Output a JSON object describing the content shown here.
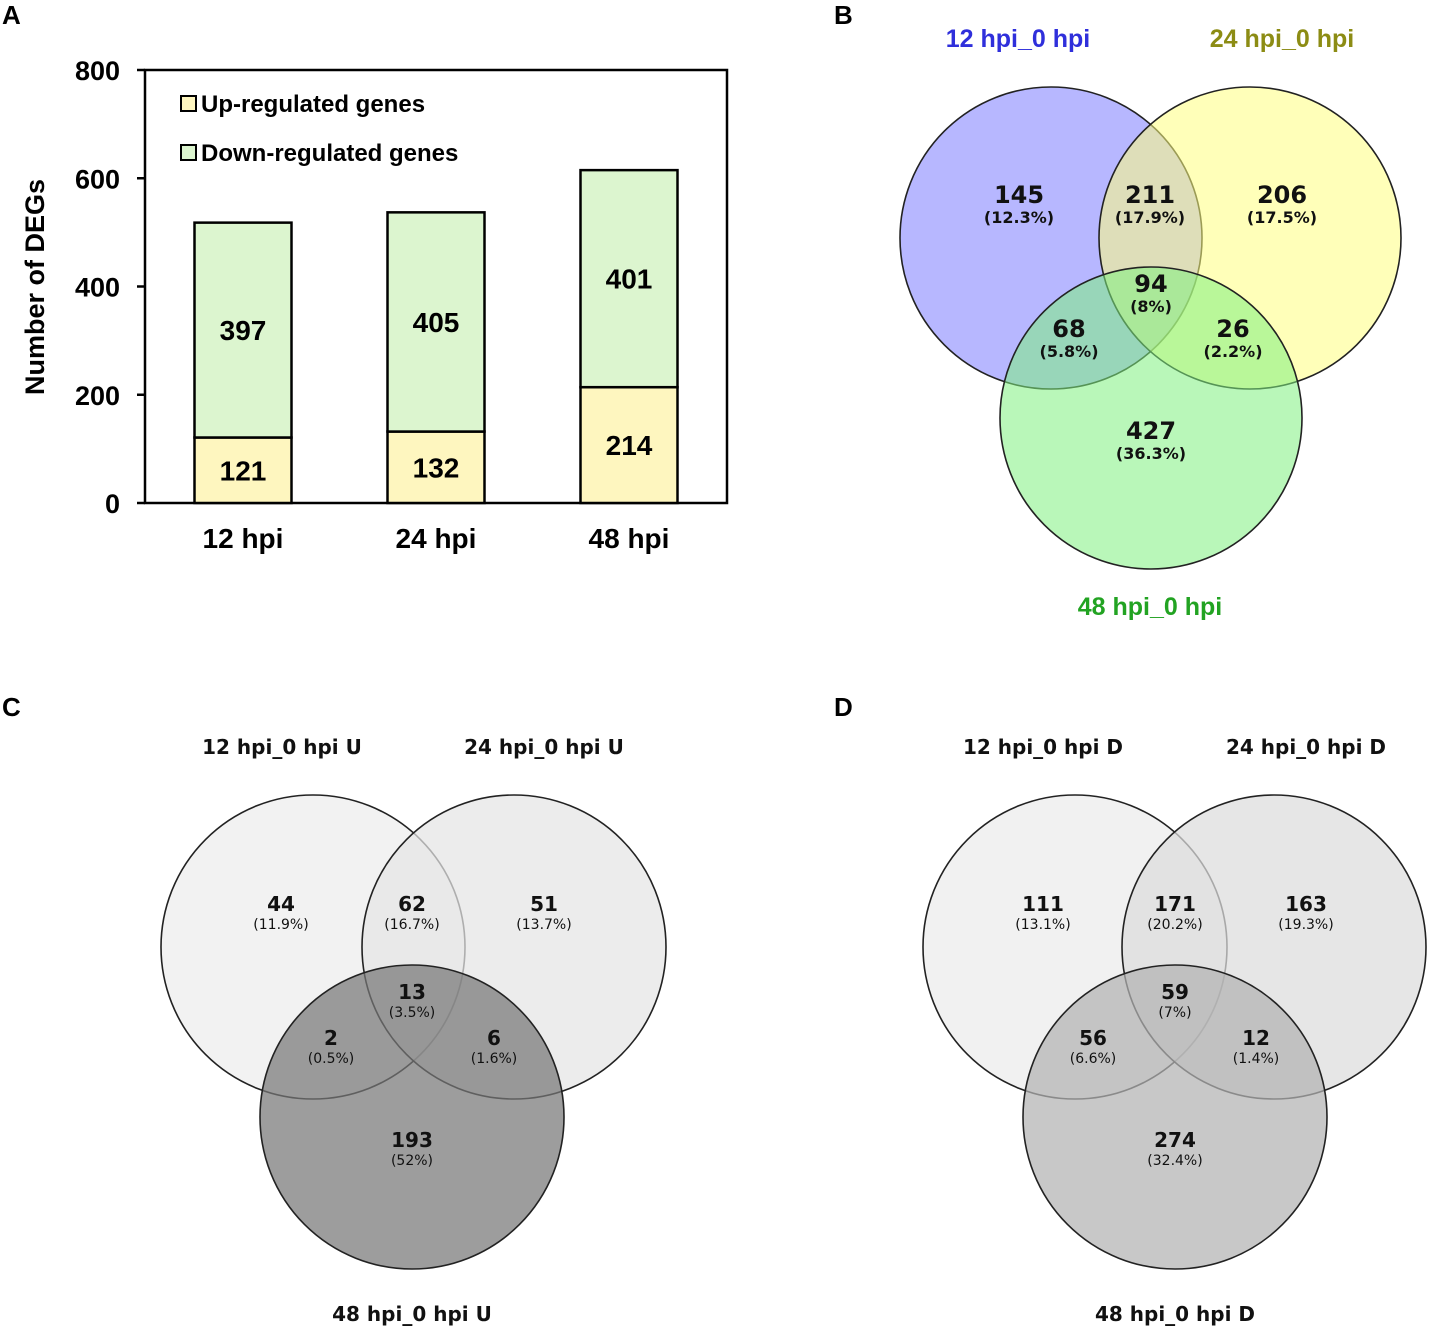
{
  "colors": {
    "up": "#fef6bf",
    "down": "#dcf5cf",
    "venn_b": [
      "#7b7cff",
      "#ffff7f",
      "#7ff07f"
    ],
    "venn_b_title": [
      "#2f2fdb",
      "#8c8c14",
      "#22a322"
    ],
    "venn_c": [
      "#ededed",
      "#e4e4e4",
      "#777777"
    ],
    "venn_d": [
      "#ececec",
      "#dcdcdc",
      "#b3b3b3"
    ]
  },
  "chart_data": [
    {
      "panel": "A",
      "type": "bar",
      "stacked": true,
      "categories": [
        "12 hpi",
        "24 hpi",
        "48 hpi"
      ],
      "series": [
        {
          "name": "Up-regulated genes",
          "values": [
            121,
            132,
            214
          ]
        },
        {
          "name": "Down-regulated genes",
          "values": [
            397,
            405,
            401
          ]
        }
      ],
      "ylabel": "Number of DEGs",
      "xlabel": "",
      "ylim": [
        0,
        800
      ],
      "yticks": [
        "0",
        "200",
        "400",
        "600",
        "800"
      ],
      "legend_position": "top-left"
    },
    {
      "panel": "B",
      "type": "venn",
      "sets": [
        "12 hpi_0 hpi",
        "24 hpi_0 hpi",
        "48 hpi_0 hpi"
      ],
      "regions": [
        {
          "key": "a",
          "count": "145",
          "pct": "(12.3%)"
        },
        {
          "key": "ab",
          "count": "211",
          "pct": "(17.9%)"
        },
        {
          "key": "b",
          "count": "206",
          "pct": "(17.5%)"
        },
        {
          "key": "abc",
          "count": "94",
          "pct": "(8%)"
        },
        {
          "key": "ac",
          "count": "68",
          "pct": "(5.8%)"
        },
        {
          "key": "bc",
          "count": "26",
          "pct": "(2.2%)"
        },
        {
          "key": "c",
          "count": "427",
          "pct": "(36.3%)"
        }
      ]
    },
    {
      "panel": "C",
      "type": "venn",
      "sets": [
        "12 hpi_0 hpi U",
        "24 hpi_0 hpi U",
        "48 hpi_0 hpi U"
      ],
      "regions": [
        {
          "key": "a",
          "count": "44",
          "pct": "(11.9%)"
        },
        {
          "key": "ab",
          "count": "62",
          "pct": "(16.7%)"
        },
        {
          "key": "b",
          "count": "51",
          "pct": "(13.7%)"
        },
        {
          "key": "abc",
          "count": "13",
          "pct": "(3.5%)"
        },
        {
          "key": "ac",
          "count": "2",
          "pct": "(0.5%)"
        },
        {
          "key": "bc",
          "count": "6",
          "pct": "(1.6%)"
        },
        {
          "key": "c",
          "count": "193",
          "pct": "(52%)"
        }
      ]
    },
    {
      "panel": "D",
      "type": "venn",
      "sets": [
        "12 hpi_0 hpi D",
        "24 hpi_0 hpi D",
        "48 hpi_0 hpi D"
      ],
      "regions": [
        {
          "key": "a",
          "count": "111",
          "pct": "(13.1%)"
        },
        {
          "key": "ab",
          "count": "171",
          "pct": "(20.2%)"
        },
        {
          "key": "b",
          "count": "163",
          "pct": "(19.3%)"
        },
        {
          "key": "abc",
          "count": "59",
          "pct": "(7%)"
        },
        {
          "key": "ac",
          "count": "56",
          "pct": "(6.6%)"
        },
        {
          "key": "bc",
          "count": "12",
          "pct": "(1.4%)"
        },
        {
          "key": "c",
          "count": "274",
          "pct": "(32.4%)"
        }
      ]
    }
  ]
}
